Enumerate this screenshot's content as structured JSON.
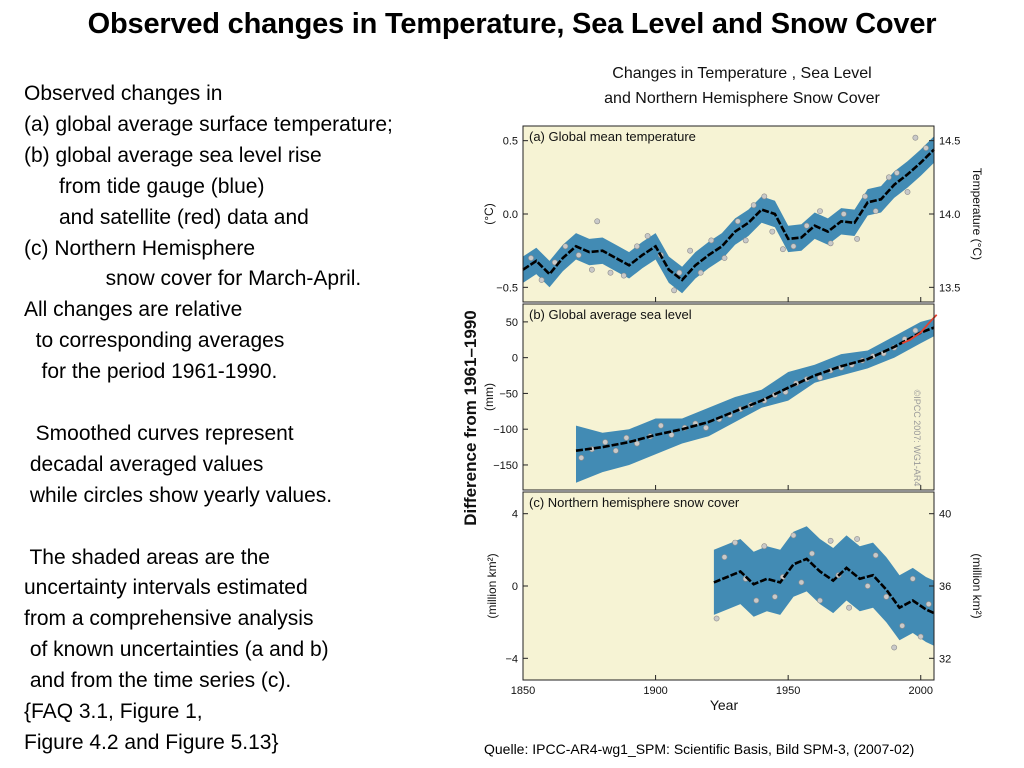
{
  "slide": {
    "title": "Observed changes in Temperature, Sea Level and Snow Cover",
    "text_lines": [
      "Observed changes in",
      "(a) global average surface temperature;",
      "(b) global average sea level rise",
      "      from tide gauge (blue)",
      "      and satellite (red) data and",
      "(c) Northern Hemisphere",
      "              snow cover for March-April.",
      "All changes are relative",
      "  to corresponding averages",
      "   for the period 1961-1990.",
      "",
      "  Smoothed curves represent",
      " decadal averaged values",
      " while circles show yearly values.",
      "",
      " The shaded areas are the",
      "uncertainty intervals estimated",
      "from a comprehensive analysis",
      " of known uncertainties (a and b)",
      " and from the time series (c).",
      "{FAQ 3.1, Figure 1,",
      "Figure 4.2 and Figure 5.13}"
    ],
    "source": "Quelle: IPCC-AR4-wg1_SPM: Scientific Basis, Bild SPM-3,  (2007-02)"
  },
  "colors": {
    "panel_bg": "#f6f3d4",
    "band": "#2f7fb0",
    "smooth_line": "#000000",
    "points": "#c9c9c9",
    "satellite": "#e8412e"
  },
  "chart_data": {
    "figure_title_lines": [
      "Changes in Temperature , Sea Level",
      "and Northern Hemisphere Snow Cover"
    ],
    "shared_ylabel": "Difference from 1961–1990",
    "xlabel": "Year",
    "xlim": [
      1850,
      2005
    ],
    "x_ticks": [
      1850,
      1900,
      1950,
      2000
    ],
    "watermark": "©IPCC 2007: WG1-AR4",
    "panels": [
      {
        "type": "line",
        "title": "(a) Global mean temperature",
        "ylabel": "(°C)",
        "ylim": [
          -0.6,
          0.6
        ],
        "y_ticks": [
          "0.5",
          "0.0",
          "−0.5"
        ],
        "y_tick_values": [
          0.5,
          0.0,
          -0.5
        ],
        "right_label": "Temperature (°C)",
        "right_ticks": [
          "14.5",
          "14.0",
          "13.5"
        ],
        "right_tick_values": [
          0.5,
          0.0,
          -0.5
        ],
        "uncertainty_halfwidth": 0.09,
        "series": [
          {
            "x": [
              1850,
              1855,
              1860,
              1865,
              1870,
              1875,
              1880,
              1885,
              1890,
              1895,
              1900,
              1905,
              1910,
              1915,
              1920,
              1925,
              1930,
              1935,
              1940,
              1945,
              1950,
              1955,
              1960,
              1965,
              1970,
              1975,
              1980,
              1985,
              1990,
              1995,
              2000,
              2005
            ],
            "y": [
              -0.38,
              -0.32,
              -0.41,
              -0.3,
              -0.22,
              -0.26,
              -0.25,
              -0.3,
              -0.35,
              -0.28,
              -0.22,
              -0.38,
              -0.45,
              -0.35,
              -0.28,
              -0.22,
              -0.12,
              -0.06,
              0.03,
              0.0,
              -0.17,
              -0.16,
              -0.08,
              -0.12,
              -0.05,
              -0.06,
              0.08,
              0.1,
              0.2,
              0.27,
              0.35,
              0.44
            ]
          }
        ],
        "yearly_points": {
          "x": [
            1853,
            1857,
            1862,
            1866,
            1871,
            1876,
            1878,
            1883,
            1888,
            1893,
            1897,
            1902,
            1907,
            1909,
            1913,
            1917,
            1921,
            1926,
            1931,
            1934,
            1937,
            1941,
            1944,
            1948,
            1952,
            1957,
            1962,
            1966,
            1971,
            1976,
            1979,
            1983,
            1988,
            1991,
            1995,
            1998,
            2002
          ],
          "y": [
            -0.3,
            -0.45,
            -0.33,
            -0.22,
            -0.28,
            -0.38,
            -0.05,
            -0.4,
            -0.42,
            -0.22,
            -0.15,
            -0.28,
            -0.52,
            -0.4,
            -0.25,
            -0.4,
            -0.18,
            -0.3,
            -0.05,
            -0.18,
            0.06,
            0.12,
            -0.12,
            -0.24,
            -0.22,
            -0.08,
            0.02,
            -0.2,
            0.0,
            -0.17,
            0.12,
            0.02,
            0.25,
            0.28,
            0.15,
            0.52,
            0.45
          ]
        }
      },
      {
        "type": "line",
        "title": "(b) Global average sea level",
        "ylabel": "(mm)",
        "ylim": [
          -185,
          75
        ],
        "y_ticks": [
          "50",
          "0",
          "−50",
          "−100",
          "−150"
        ],
        "y_tick_values": [
          50,
          0,
          -50,
          -100,
          -150
        ],
        "band_upper": {
          "x": [
            1870,
            1880,
            1890,
            1900,
            1910,
            1920,
            1930,
            1940,
            1950,
            1960,
            1970,
            1980,
            1990,
            2000,
            2005
          ],
          "y": [
            -95,
            -105,
            -100,
            -85,
            -85,
            -70,
            -55,
            -45,
            -20,
            -10,
            5,
            10,
            30,
            50,
            55
          ]
        },
        "band_lower": {
          "x": [
            1870,
            1880,
            1890,
            1900,
            1910,
            1920,
            1930,
            1940,
            1950,
            1960,
            1970,
            1980,
            1990,
            2000,
            2005
          ],
          "y": [
            -175,
            -160,
            -150,
            -135,
            -120,
            -110,
            -90,
            -70,
            -60,
            -35,
            -25,
            -15,
            0,
            20,
            30
          ]
        },
        "series": [
          {
            "name": "tide gauge",
            "x": [
              1870,
              1880,
              1890,
              1900,
              1910,
              1920,
              1930,
              1940,
              1950,
              1960,
              1970,
              1980,
              1990,
              2000,
              2005
            ],
            "y": [
              -130,
              -125,
              -118,
              -108,
              -100,
              -90,
              -75,
              -60,
              -42,
              -25,
              -12,
              -2,
              15,
              35,
              42
            ]
          },
          {
            "name": "satellite",
            "x": [
              1993,
              1996,
              2000,
              2003,
              2006
            ],
            "y": [
              20,
              25,
              35,
              48,
              60
            ]
          }
        ],
        "yearly_points": {
          "x": [
            1872,
            1876,
            1881,
            1885,
            1889,
            1893,
            1898,
            1902,
            1906,
            1911,
            1915,
            1919,
            1924,
            1928,
            1932,
            1936,
            1941,
            1945,
            1949,
            1953,
            1957,
            1962,
            1966,
            1970,
            1974,
            1978,
            1982,
            1986,
            1990,
            1994,
            1998
          ],
          "y": [
            -140,
            -128,
            -118,
            -130,
            -112,
            -120,
            -110,
            -95,
            -108,
            -98,
            -92,
            -98,
            -86,
            -80,
            -72,
            -66,
            -60,
            -52,
            -48,
            -36,
            -30,
            -28,
            -18,
            -14,
            -10,
            -4,
            2,
            6,
            14,
            26,
            38
          ]
        }
      },
      {
        "type": "line",
        "title": "(c) Northern hemisphere snow cover",
        "ylabel": "(million km²)",
        "ylim": [
          -5.2,
          5.2
        ],
        "y_ticks": [
          "4",
          "0",
          "−4"
        ],
        "y_tick_values": [
          4,
          0,
          -4
        ],
        "right_label": "(million km²)",
        "right_ticks": [
          "40",
          "36",
          "32"
        ],
        "right_tick_values": [
          4,
          0,
          -4
        ],
        "uncertainty_halfwidth": 1.8,
        "series": [
          {
            "x": [
              1922,
              1927,
              1932,
              1937,
              1942,
              1947,
              1952,
              1957,
              1962,
              1967,
              1972,
              1977,
              1982,
              1987,
              1992,
              1997,
              2002,
              2005
            ],
            "y": [
              0.2,
              0.5,
              0.8,
              0.1,
              0.4,
              0.2,
              1.2,
              1.5,
              0.8,
              0.3,
              1.0,
              0.4,
              0.6,
              -0.2,
              -1.2,
              -0.8,
              -1.3,
              -1.5
            ]
          }
        ],
        "yearly_points": {
          "x": [
            1923,
            1926,
            1930,
            1934,
            1938,
            1941,
            1945,
            1948,
            1952,
            1955,
            1959,
            1962,
            1966,
            1969,
            1973,
            1976,
            1980,
            1983,
            1987,
            1990,
            1993,
            1997,
            2000,
            2003
          ],
          "y": [
            -1.8,
            1.6,
            2.4,
            0.4,
            -0.8,
            2.2,
            -0.6,
            0.5,
            2.8,
            0.2,
            1.8,
            -0.8,
            2.5,
            0.6,
            -1.2,
            2.6,
            0.0,
            1.7,
            -0.6,
            -3.4,
            -2.2,
            0.4,
            -2.8,
            -1.0
          ]
        }
      }
    ]
  }
}
